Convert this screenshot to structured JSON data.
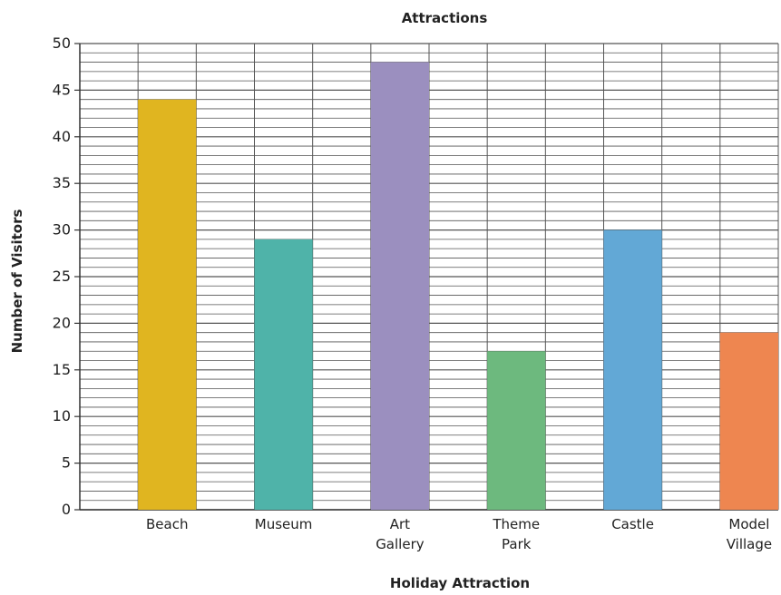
{
  "chart_data": {
    "type": "bar",
    "title": "Attractions",
    "xlabel": "Holiday Attraction",
    "ylabel": "Number of Visitors",
    "ylim": [
      0,
      50
    ],
    "y_ticks": [
      "0",
      "5",
      "10",
      "15",
      "20",
      "25",
      "30",
      "35",
      "40",
      "45",
      "50"
    ],
    "categories": [
      [
        "Beach"
      ],
      [
        "Museum"
      ],
      [
        "Art",
        "Gallery"
      ],
      [
        "Theme",
        "Park"
      ],
      [
        "Castle"
      ],
      [
        "Model",
        "Village"
      ]
    ],
    "values": [
      44,
      29,
      48,
      17,
      30,
      19
    ],
    "colors": [
      "#E0B520",
      "#4FB3A9",
      "#9B8FBF",
      "#6DB97E",
      "#62A8D6",
      "#EE8650"
    ],
    "grid": true,
    "grid_color": "#555555",
    "legend": "none"
  }
}
